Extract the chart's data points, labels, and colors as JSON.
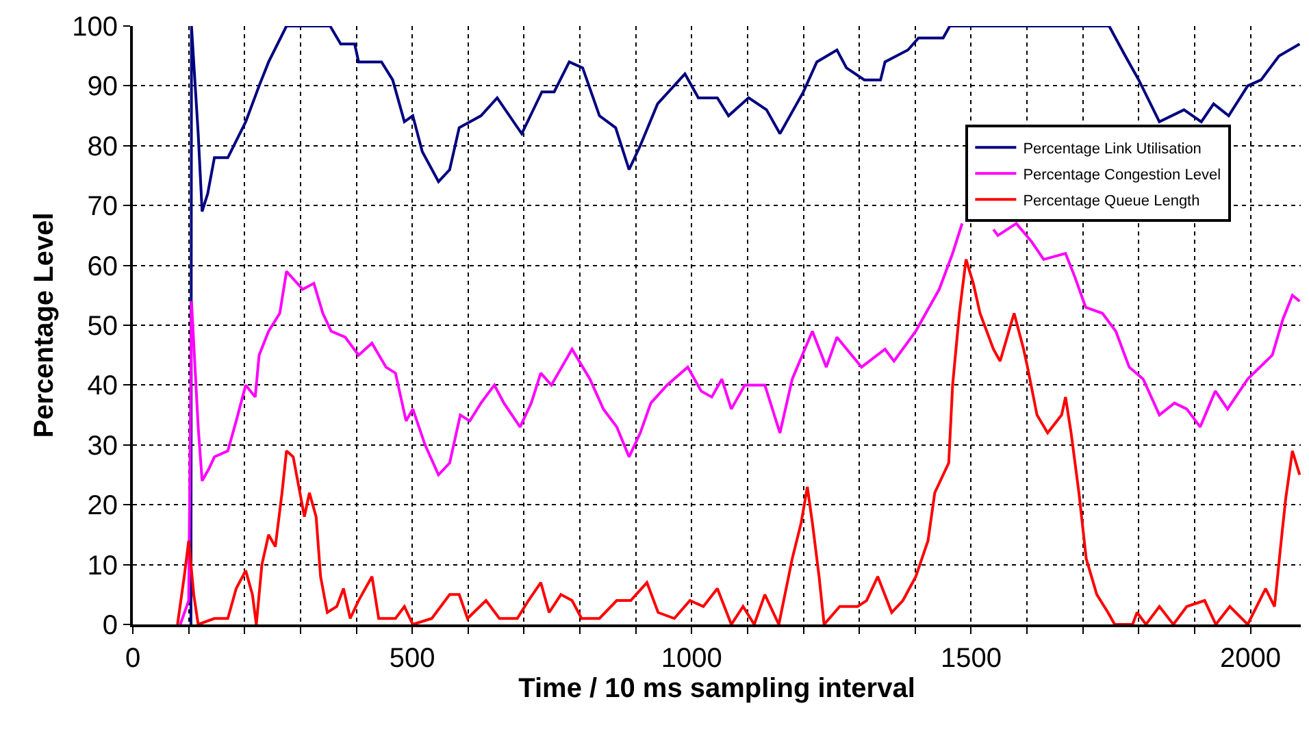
{
  "chart_data": {
    "type": "line",
    "xlabel": "Time / 10 ms sampling interval",
    "ylabel": "Percentage Level",
    "xlim": [
      0,
      2090
    ],
    "ylim": [
      0,
      100
    ],
    "xticks": [
      0,
      {
        "value": 100,
        "label": null
      },
      {
        "value": 200,
        "label": null
      },
      {
        "value": 300,
        "label": null
      },
      {
        "value": 400,
        "label": null
      },
      500,
      {
        "value": 600,
        "label": null
      },
      {
        "value": 700,
        "label": null
      },
      {
        "value": 800,
        "label": null
      },
      {
        "value": 900,
        "label": null
      },
      1000,
      {
        "value": 1100,
        "label": null
      },
      {
        "value": 1200,
        "label": null
      },
      {
        "value": 1300,
        "label": null
      },
      {
        "value": 1400,
        "label": null
      },
      1500,
      {
        "value": 1600,
        "label": null
      },
      {
        "value": 1700,
        "label": null
      },
      {
        "value": 1800,
        "label": null
      },
      {
        "value": 1900,
        "label": null
      },
      2000
    ],
    "yticks": [
      0,
      10,
      20,
      30,
      40,
      50,
      60,
      70,
      80,
      90,
      100
    ],
    "grid": true,
    "legend": "top right",
    "series": [
      {
        "name": "Percentage Link Utilisation",
        "color": "#000080",
        "x": [
          104,
          105,
          117,
          124,
          134,
          146,
          170,
          202,
          226,
          243,
          275,
          353,
          372,
          397,
          404,
          445,
          465,
          486,
          501,
          518,
          547,
          567,
          584,
          623,
          652,
          696,
          732,
          754,
          781,
          805,
          835,
          864,
          888,
          908,
          939,
          988,
          1012,
          1046,
          1066,
          1102,
          1134,
          1158,
          1200,
          1224,
          1260,
          1277,
          1309,
          1338,
          1346,
          1387,
          1406,
          1450,
          1462,
          1747,
          1776,
          1800,
          1837,
          1881,
          1912,
          1934,
          1961,
          1995,
          2019,
          2051,
          2088
        ],
        "values": [
          0,
          100,
          82,
          69,
          72,
          78,
          78,
          84,
          90,
          94,
          100,
          100,
          97,
          97,
          94,
          94,
          91,
          84,
          85,
          79,
          74,
          76,
          83,
          85,
          88,
          82,
          89,
          89,
          94,
          93,
          85,
          83,
          76,
          80,
          87,
          92,
          88,
          88,
          85,
          88,
          86,
          82,
          89,
          94,
          96,
          93,
          91,
          91,
          94,
          96,
          98,
          98,
          100,
          100,
          95,
          91,
          84,
          86,
          84,
          87,
          85,
          90,
          91,
          95,
          97
        ]
      },
      {
        "name": "Percentage Congestion Level",
        "color": "#ff00ff",
        "x": [
          85,
          100,
          105,
          117,
          124,
          136,
          146,
          170,
          185,
          202,
          219,
          226,
          243,
          263,
          275,
          304,
          324,
          340,
          355,
          380,
          404,
          428,
          453,
          470,
          489,
          501,
          523,
          547,
          567,
          586,
          603,
          623,
          647,
          664,
          693,
          713,
          730,
          749,
          786,
          818,
          842,
          866,
          888,
          908,
          927,
          956,
          993,
          1017,
          1036,
          1054,
          1071,
          1095,
          1131,
          1158,
          1180,
          1216,
          1241,
          1260,
          1304,
          1346,
          1362,
          1401,
          1443,
          1467,
          1484,
          1510,
          1540,
          1548,
          1581,
          1608,
          1630,
          1669,
          1686,
          1705,
          1735,
          1759,
          1783,
          1808,
          1837,
          1864,
          1886,
          1910,
          1937,
          1959,
          1995,
          2039,
          2058,
          2075,
          2088
        ],
        "values": [
          0,
          4,
          54,
          33,
          24,
          26,
          28,
          29,
          34,
          40,
          38,
          45,
          49,
          52,
          59,
          56,
          57,
          52,
          49,
          48,
          45,
          47,
          43,
          42,
          34,
          36,
          30,
          25,
          27,
          35,
          34,
          37,
          40,
          37,
          33,
          37,
          42,
          40,
          46,
          41,
          36,
          33,
          28,
          32,
          37,
          40,
          43,
          39,
          38,
          41,
          36,
          40,
          40,
          32,
          41,
          49,
          43,
          48,
          43,
          46,
          44,
          49,
          56,
          62,
          67,
          null,
          66,
          65,
          67,
          64,
          61,
          62,
          58,
          53,
          52,
          49,
          43,
          41,
          35,
          37,
          36,
          33,
          39,
          36,
          41,
          45,
          51,
          55,
          54
        ]
      },
      {
        "name": "Percentage Queue Length",
        "color": "#ff0000",
        "x": [
          80,
          92,
          100,
          109,
          117,
          146,
          170,
          185,
          202,
          214,
          221,
          231,
          243,
          255,
          267,
          275,
          287,
          299,
          307,
          316,
          328,
          336,
          348,
          365,
          377,
          389,
          404,
          428,
          440,
          470,
          486,
          501,
          535,
          567,
          584,
          599,
          632,
          656,
          688,
          708,
          730,
          745,
          766,
          786,
          803,
          835,
          866,
          891,
          920,
          940,
          969,
          997,
          1021,
          1046,
          1071,
          1092,
          1112,
          1131,
          1156,
          1180,
          1196,
          1207,
          1216,
          1228,
          1237,
          1265,
          1297,
          1313,
          1333,
          1358,
          1378,
          1401,
          1423,
          1435,
          1460,
          1467,
          1479,
          1491,
          1504,
          1516,
          1540,
          1552,
          1577,
          1594,
          1601,
          1618,
          1637,
          1662,
          1669,
          1679,
          1693,
          1706,
          1725,
          1745,
          1757,
          1789,
          1797,
          1813,
          1837,
          1862,
          1886,
          1918,
          1938,
          1963,
          1995,
          2027,
          2043,
          2055,
          2063,
          2075,
          2088
        ],
        "values": [
          0,
          8,
          14,
          5,
          0,
          1,
          1,
          6,
          9,
          5,
          0,
          10,
          15,
          13,
          22,
          29,
          28,
          22,
          18,
          22,
          18,
          8,
          2,
          3,
          6,
          1,
          4,
          8,
          1,
          1,
          3,
          0,
          1,
          5,
          5,
          1,
          4,
          1,
          1,
          4,
          7,
          2,
          5,
          4,
          1,
          1,
          4,
          4,
          7,
          2,
          1,
          4,
          3,
          6,
          0,
          3,
          0,
          5,
          0,
          11,
          17,
          23,
          17,
          8,
          0,
          3,
          3,
          4,
          8,
          2,
          4,
          8,
          14,
          22,
          27,
          40,
          52,
          61,
          57,
          52,
          46,
          44,
          52,
          46,
          43,
          35,
          32,
          35,
          38,
          32,
          22,
          11,
          5,
          2,
          0,
          0,
          2,
          0,
          3,
          0,
          3,
          4,
          0,
          3,
          0,
          6,
          3,
          14,
          21,
          29,
          25
        ]
      }
    ]
  }
}
